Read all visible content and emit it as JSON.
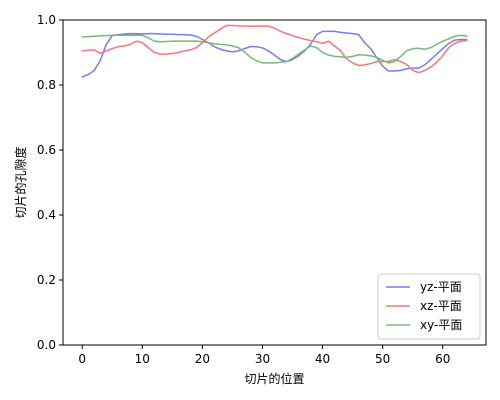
{
  "chart_data": {
    "type": "line",
    "title": "",
    "xlabel": "切片的位置",
    "ylabel": "切片的孔隙度",
    "xlim": [
      -3.2,
      67.2
    ],
    "ylim": [
      0.0,
      1.0
    ],
    "xticks": [
      0,
      10,
      20,
      30,
      40,
      50,
      60
    ],
    "yticks": [
      0.0,
      0.2,
      0.4,
      0.6,
      0.8,
      1.0
    ],
    "ytick_labels": [
      "0.0",
      "0.2",
      "0.4",
      "0.6",
      "0.8",
      "1.0"
    ],
    "grid": false,
    "legend": "lower-right",
    "x": [
      0,
      1,
      2,
      3,
      4,
      5,
      6,
      7,
      8,
      9,
      10,
      11,
      12,
      13,
      14,
      15,
      16,
      17,
      18,
      19,
      20,
      21,
      22,
      23,
      24,
      25,
      26,
      27,
      28,
      29,
      30,
      31,
      32,
      33,
      34,
      35,
      36,
      37,
      38,
      39,
      40,
      41,
      42,
      43,
      44,
      45,
      46,
      47,
      48,
      49,
      50,
      51,
      52,
      53,
      54,
      55,
      56,
      57,
      58,
      59,
      60,
      61,
      62,
      63,
      64
    ],
    "series": [
      {
        "name": "yz-平面",
        "color": "#7a7af0",
        "values": [
          0.825,
          0.832,
          0.845,
          0.875,
          0.925,
          0.952,
          0.955,
          0.957,
          0.958,
          0.958,
          0.957,
          0.958,
          0.958,
          0.957,
          0.956,
          0.956,
          0.955,
          0.955,
          0.954,
          0.95,
          0.94,
          0.93,
          0.918,
          0.91,
          0.905,
          0.902,
          0.905,
          0.912,
          0.918,
          0.918,
          0.914,
          0.905,
          0.892,
          0.878,
          0.872,
          0.878,
          0.89,
          0.905,
          0.925,
          0.955,
          0.965,
          0.965,
          0.965,
          0.962,
          0.96,
          0.958,
          0.955,
          0.93,
          0.912,
          0.885,
          0.858,
          0.843,
          0.843,
          0.845,
          0.85,
          0.852,
          0.852,
          0.862,
          0.878,
          0.895,
          0.912,
          0.928,
          0.938,
          0.94,
          0.94
        ]
      },
      {
        "name": "xz-平面",
        "color": "#f07a7a",
        "values": [
          0.905,
          0.907,
          0.908,
          0.897,
          0.905,
          0.912,
          0.918,
          0.92,
          0.925,
          0.935,
          0.93,
          0.915,
          0.9,
          0.895,
          0.895,
          0.897,
          0.9,
          0.905,
          0.908,
          0.915,
          0.93,
          0.948,
          0.96,
          0.972,
          0.983,
          0.983,
          0.982,
          0.981,
          0.981,
          0.981,
          0.981,
          0.981,
          0.975,
          0.965,
          0.958,
          0.952,
          0.946,
          0.941,
          0.937,
          0.933,
          0.928,
          0.935,
          0.92,
          0.905,
          0.88,
          0.868,
          0.86,
          0.862,
          0.866,
          0.872,
          0.872,
          0.873,
          0.878,
          0.872,
          0.863,
          0.845,
          0.838,
          0.845,
          0.855,
          0.87,
          0.89,
          0.915,
          0.928,
          0.935,
          0.937
        ]
      },
      {
        "name": "xy-平面",
        "color": "#7ab87a",
        "values": [
          0.948,
          0.949,
          0.95,
          0.951,
          0.952,
          0.953,
          0.953,
          0.953,
          0.953,
          0.953,
          0.953,
          0.945,
          0.935,
          0.933,
          0.934,
          0.935,
          0.935,
          0.935,
          0.935,
          0.935,
          0.933,
          0.93,
          0.927,
          0.925,
          0.924,
          0.92,
          0.915,
          0.902,
          0.885,
          0.875,
          0.868,
          0.868,
          0.868,
          0.87,
          0.872,
          0.882,
          0.895,
          0.908,
          0.92,
          0.915,
          0.9,
          0.892,
          0.888,
          0.887,
          0.885,
          0.888,
          0.893,
          0.892,
          0.89,
          0.885,
          0.876,
          0.868,
          0.872,
          0.888,
          0.905,
          0.912,
          0.913,
          0.91,
          0.915,
          0.925,
          0.935,
          0.942,
          0.95,
          0.953,
          0.95
        ]
      }
    ]
  }
}
